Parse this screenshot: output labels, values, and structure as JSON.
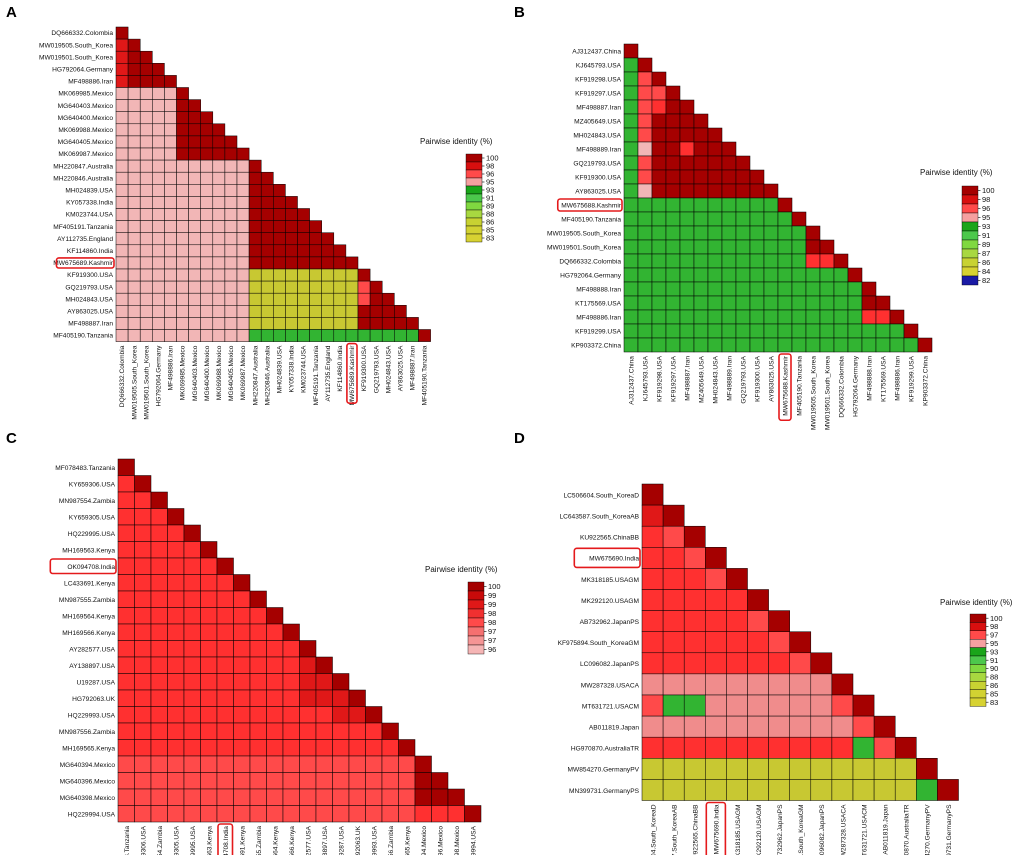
{
  "figure": {
    "panels": [
      "A",
      "B",
      "C",
      "D"
    ]
  },
  "chart_data": [
    {
      "panel": "A",
      "type": "heatmap",
      "legend_title": "Pairwise identity (%)",
      "legend_ticks": [
        "100",
        "98",
        "96",
        "95",
        "93",
        "91",
        "89",
        "88",
        "86",
        "85",
        "83"
      ],
      "labels": [
        "DQ666332.Colombia",
        "MW019505.South_Korea",
        "MW019501.South_Korea",
        "HG792064.Germany",
        "MF498886.Iran",
        "MK069985.Mexico",
        "MG640403.Mexico",
        "MG640400.Mexico",
        "MK069988.Mexico",
        "MG640405.Mexico",
        "MK069987.Mexico",
        "MH220847.Australia",
        "MH220846.Australia",
        "MH024839.USA",
        "KY057338.India",
        "KM023744.USA",
        "MF405191.Tanzania",
        "AY112735.England",
        "KF114860.India",
        "MW675689.Kashmir",
        "KF919300.USA",
        "GQ219793.USA",
        "MH024843.USA",
        "AY863025.USA",
        "MF498887.Iran",
        "MF405190.Tanzania"
      ],
      "highlight_index": 19,
      "groups": [
        0,
        1,
        1,
        2,
        2,
        3,
        3,
        3,
        3,
        3,
        3,
        4,
        4,
        4,
        4,
        4,
        4,
        4,
        4,
        4,
        5,
        5,
        5,
        5,
        5,
        6
      ],
      "class_map": [
        [
          9,
          8,
          8,
          4,
          4,
          4,
          4
        ],
        [
          8,
          9,
          9,
          4,
          4,
          4,
          4
        ],
        [
          8,
          9,
          9,
          4,
          4,
          4,
          4
        ],
        [
          4,
          4,
          4,
          9,
          4,
          4,
          4
        ],
        [
          4,
          4,
          4,
          4,
          9,
          0,
          3
        ],
        [
          4,
          4,
          4,
          4,
          0,
          9,
          3
        ],
        [
          4,
          4,
          4,
          4,
          3,
          3,
          9
        ]
      ],
      "class_overrides": [
        [
          21,
          20,
          7
        ],
        [
          22,
          20,
          7
        ]
      ]
    },
    {
      "panel": "B",
      "type": "heatmap",
      "legend_title": "Pairwise identity (%)",
      "legend_ticks": [
        "100",
        "98",
        "96",
        "95",
        "93",
        "91",
        "89",
        "87",
        "86",
        "84",
        "82"
      ],
      "labels": [
        "AJ312437.China",
        "KJ645793.USA",
        "KF919298.USA",
        "KF919297.USA",
        "MF498887.Iran",
        "MZ405649.USA",
        "MH024843.USA",
        "MF498889.Iran",
        "GQ219793.USA",
        "KF919300.USA",
        "AY863025.USA",
        "MW675688.Kashmir",
        "MF405190.Tanzania",
        "MW019505.South_Korea",
        "MW019501.South_Korea",
        "DQ666332.Colombia",
        "HG792064.Germany",
        "MF498888.Iran",
        "KT175569.USA",
        "MF498886.Iran",
        "KF919299.USA",
        "KP903372.China"
      ],
      "highlight_index": 11,
      "groups": [
        0,
        1,
        1,
        1,
        1,
        1,
        1,
        1,
        1,
        1,
        1,
        2,
        3,
        4,
        4,
        5,
        6,
        7,
        7,
        7,
        7,
        8
      ],
      "class_map": [
        [
          9,
          3,
          3,
          3,
          3,
          3,
          3,
          3,
          3
        ],
        [
          3,
          9,
          3,
          3,
          3,
          3,
          3,
          3,
          3
        ],
        [
          3,
          3,
          9,
          3,
          3,
          3,
          3,
          3,
          3
        ],
        [
          3,
          3,
          3,
          9,
          3,
          3,
          3,
          3,
          3
        ],
        [
          3,
          3,
          3,
          3,
          9,
          6,
          3,
          3,
          3
        ],
        [
          3,
          3,
          3,
          3,
          6,
          9,
          3,
          3,
          3
        ],
        [
          3,
          3,
          3,
          3,
          3,
          3,
          9,
          3,
          3
        ],
        [
          3,
          3,
          3,
          3,
          3,
          3,
          3,
          9,
          3
        ],
        [
          3,
          3,
          3,
          3,
          3,
          3,
          3,
          3,
          9
        ]
      ],
      "class_overrides": [
        [
          2,
          1,
          7
        ],
        [
          3,
          1,
          7
        ],
        [
          3,
          2,
          7
        ],
        [
          4,
          1,
          7
        ],
        [
          5,
          1,
          7
        ],
        [
          6,
          1,
          7
        ],
        [
          7,
          1,
          4
        ],
        [
          8,
          1,
          7
        ],
        [
          9,
          1,
          7
        ],
        [
          10,
          1,
          4
        ],
        [
          4,
          2,
          6
        ],
        [
          7,
          4,
          6
        ],
        [
          19,
          17,
          6
        ],
        [
          19,
          18,
          6
        ],
        [
          20,
          17,
          3
        ],
        [
          20,
          18,
          3
        ],
        [
          20,
          19,
          3
        ]
      ]
    },
    {
      "panel": "C",
      "type": "heatmap",
      "legend_title": "Pairwise identity (%)",
      "legend_ticks": [
        "100",
        "99",
        "99",
        "98",
        "98",
        "97",
        "97",
        "96"
      ],
      "labels": [
        "MF078483.Tanzania",
        "KY659306.USA",
        "MN987554.Zambia",
        "KY659305.USA",
        "HQ229995.USA",
        "MH169563.Kenya",
        "OK094708.India",
        "LC433691.Kenya",
        "MN987555.Zambia",
        "MH169564.Kenya",
        "MH169566.Kenya",
        "AY282577.USA",
        "AY138897.USA",
        "U19287.USA",
        "HG792063.UK",
        "HQ229993.USA",
        "MN987556.Zambia",
        "MH169565.Kenya",
        "MG640394.Mexico",
        "MG640396.Mexico",
        "MG640398.Mexico",
        "HQ229994.USA"
      ],
      "highlight_index": 6,
      "groups": [
        0,
        1,
        1,
        1,
        1,
        1,
        1,
        1,
        1,
        1,
        1,
        1,
        1,
        1,
        1,
        1,
        1,
        1,
        2,
        2,
        2,
        3
      ],
      "class_map": [
        [
          9,
          6,
          7,
          7
        ],
        [
          6,
          6,
          7,
          7
        ],
        [
          7,
          7,
          9,
          6
        ],
        [
          7,
          7,
          6,
          9
        ]
      ],
      "class_overrides": [
        [
          12,
          11,
          8
        ],
        [
          13,
          11,
          8
        ],
        [
          13,
          12,
          8
        ],
        [
          14,
          11,
          8
        ],
        [
          14,
          12,
          8
        ],
        [
          14,
          13,
          8
        ],
        [
          15,
          13,
          8
        ],
        [
          15,
          14,
          8
        ]
      ]
    },
    {
      "panel": "D",
      "type": "heatmap",
      "legend_title": "Pairwise identity (%)",
      "legend_ticks": [
        "100",
        "98",
        "97",
        "95",
        "93",
        "91",
        "90",
        "88",
        "86",
        "85",
        "83"
      ],
      "labels": [
        "LC506604.South_KoreaD",
        "LC643587.South_KoreaAB",
        "KU922565.ChinaBB",
        "MW675690.India",
        "MK318185.USAGM",
        "MK292120.USAGM",
        "AB732962.JapanPS",
        "KF975894.South_KoreaGM",
        "LC096082.JapanPS",
        "MW287328.USACA",
        "MT631721.USACM",
        "AB011819.Japan",
        "HG970870.AustraliaTR",
        "MW854270.GermanyPV",
        "MN399731.GermanyPS"
      ],
      "highlight_index": 3,
      "groups": [
        0,
        1,
        2,
        3,
        4,
        5,
        6,
        7,
        8,
        9,
        10,
        11,
        12,
        13,
        14
      ],
      "class_map": [
        [
          9,
          6,
          6,
          6,
          6,
          6,
          6,
          6,
          6,
          6,
          6,
          6,
          6,
          0,
          0
        ],
        [
          6,
          9,
          6,
          6,
          6,
          6,
          6,
          6,
          6,
          6,
          6,
          6,
          6,
          0,
          0
        ],
        [
          6,
          6,
          9,
          6,
          6,
          6,
          6,
          6,
          6,
          6,
          6,
          6,
          6,
          0,
          0
        ],
        [
          6,
          6,
          6,
          9,
          6,
          6,
          6,
          6,
          6,
          6,
          6,
          6,
          6,
          0,
          0
        ],
        [
          6,
          6,
          6,
          6,
          9,
          6,
          6,
          6,
          6,
          6,
          6,
          6,
          6,
          0,
          0
        ],
        [
          6,
          6,
          6,
          6,
          6,
          9,
          6,
          6,
          6,
          6,
          6,
          6,
          6,
          0,
          0
        ],
        [
          6,
          6,
          6,
          6,
          6,
          6,
          9,
          6,
          6,
          6,
          6,
          6,
          6,
          0,
          0
        ],
        [
          6,
          6,
          6,
          6,
          6,
          6,
          6,
          9,
          6,
          6,
          6,
          6,
          6,
          0,
          0
        ],
        [
          6,
          6,
          6,
          6,
          6,
          6,
          6,
          6,
          9,
          6,
          6,
          6,
          6,
          0,
          0
        ],
        [
          6,
          6,
          6,
          6,
          6,
          6,
          6,
          6,
          6,
          9,
          6,
          6,
          6,
          0,
          0
        ],
        [
          6,
          6,
          6,
          6,
          6,
          6,
          6,
          6,
          6,
          6,
          9,
          6,
          6,
          0,
          0
        ],
        [
          6,
          6,
          6,
          6,
          6,
          6,
          6,
          6,
          6,
          6,
          6,
          9,
          6,
          0,
          0
        ],
        [
          6,
          6,
          6,
          6,
          6,
          6,
          6,
          6,
          6,
          6,
          6,
          6,
          9,
          0,
          0
        ],
        [
          0,
          0,
          0,
          0,
          0,
          0,
          0,
          0,
          0,
          0,
          0,
          0,
          0,
          9,
          3
        ],
        [
          0,
          0,
          0,
          0,
          0,
          0,
          0,
          0,
          0,
          0,
          0,
          0,
          0,
          3,
          9
        ]
      ],
      "class_overrides": [
        [
          1,
          0,
          8
        ],
        [
          2,
          1,
          7
        ],
        [
          3,
          2,
          7
        ],
        [
          4,
          3,
          7
        ],
        [
          6,
          5,
          7
        ],
        [
          7,
          6,
          7
        ],
        [
          8,
          7,
          7
        ],
        [
          9,
          8,
          7
        ],
        [
          10,
          0,
          7
        ],
        [
          10,
          1,
          3
        ],
        [
          10,
          2,
          3
        ],
        [
          10,
          9,
          7
        ],
        [
          11,
          10,
          7
        ],
        [
          12,
          10,
          3
        ],
        [
          12,
          11,
          7
        ],
        [
          9,
          0,
          5
        ],
        [
          9,
          1,
          5
        ],
        [
          9,
          2,
          5
        ],
        [
          9,
          3,
          5
        ],
        [
          9,
          4,
          5
        ],
        [
          9,
          5,
          5
        ],
        [
          9,
          6,
          5
        ],
        [
          9,
          7,
          5
        ],
        [
          9,
          8,
          5
        ],
        [
          10,
          3,
          5
        ],
        [
          10,
          4,
          5
        ],
        [
          10,
          5,
          5
        ],
        [
          10,
          6,
          5
        ],
        [
          10,
          7,
          5
        ],
        [
          10,
          8,
          5
        ],
        [
          11,
          0,
          5
        ],
        [
          11,
          1,
          5
        ],
        [
          11,
          2,
          5
        ],
        [
          11,
          3,
          5
        ],
        [
          11,
          4,
          5
        ],
        [
          11,
          5,
          5
        ],
        [
          11,
          6,
          5
        ],
        [
          11,
          7,
          5
        ],
        [
          11,
          8,
          5
        ],
        [
          11,
          9,
          5
        ]
      ]
    }
  ],
  "palette": {
    "classes": [
      "#c8c832",
      "#d7d732",
      "#6ec846",
      "#32b432",
      "#f2b6b6",
      "#f08c8c",
      "#ff3030",
      "#ff4a4a",
      "#e01818",
      "#a50000"
    ],
    "legend_A": [
      "#a50000",
      "#d80f0f",
      "#ff4a4a",
      "#f5a0a0",
      "#1aa51a",
      "#4cc84c",
      "#80d840",
      "#a8d840",
      "#c8d232",
      "#d2d232",
      "#d7d232"
    ],
    "legend_B": [
      "#a50000",
      "#d80f0f",
      "#ff4a4a",
      "#f5a0a0",
      "#1aa51a",
      "#4cc84c",
      "#80d840",
      "#a8d840",
      "#c8d232",
      "#d7d232",
      "#1a1aa5"
    ],
    "legend_C": [
      "#a50000",
      "#c80a0a",
      "#e01818",
      "#f03030",
      "#ff4a4a",
      "#f57070",
      "#f59595",
      "#f5b5b5"
    ],
    "legend_D": [
      "#a50000",
      "#d80f0f",
      "#ff4a4a",
      "#f5a0a0",
      "#1aa51a",
      "#4cc84c",
      "#80d840",
      "#a8d840",
      "#c8d232",
      "#d2d232",
      "#d7d232"
    ],
    "highlight": "#e41a1c"
  }
}
